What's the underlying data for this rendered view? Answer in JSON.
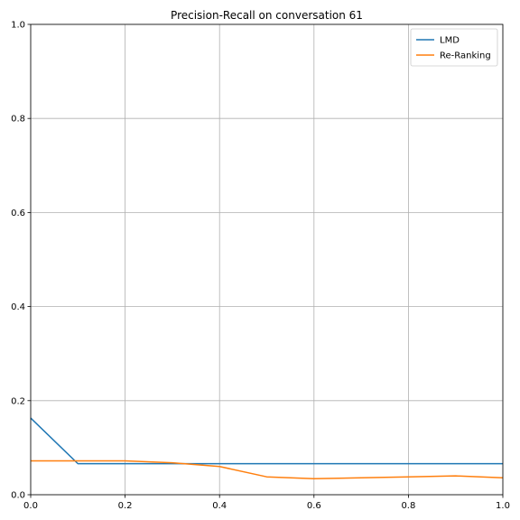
{
  "chart_data": {
    "type": "line",
    "title": "Precision-Recall on conversation 61",
    "xlabel": "",
    "ylabel": "",
    "xlim": [
      0,
      1
    ],
    "ylim": [
      0,
      1
    ],
    "grid": true,
    "legend_position": "top-right",
    "xticks": [
      "0.0",
      "0.2",
      "0.4",
      "0.6",
      "0.8",
      "1.0"
    ],
    "yticks": [
      "0.0",
      "0.2",
      "0.4",
      "0.6",
      "0.8",
      "1.0"
    ],
    "series": [
      {
        "name": "LMD",
        "color": "#1f77b4",
        "x": [
          0.0,
          0.1,
          0.2,
          0.3,
          0.4,
          0.5,
          0.6,
          0.7,
          0.8,
          0.9,
          1.0
        ],
        "y": [
          0.163,
          0.066,
          0.066,
          0.066,
          0.066,
          0.066,
          0.066,
          0.066,
          0.066,
          0.066,
          0.066
        ]
      },
      {
        "name": "Re-Ranking",
        "color": "#ff7f0e",
        "x": [
          0.0,
          0.1,
          0.2,
          0.3,
          0.4,
          0.5,
          0.6,
          0.7,
          0.8,
          0.9,
          1.0
        ],
        "y": [
          0.072,
          0.072,
          0.072,
          0.068,
          0.06,
          0.038,
          0.034,
          0.036,
          0.038,
          0.04,
          0.036
        ]
      }
    ]
  }
}
